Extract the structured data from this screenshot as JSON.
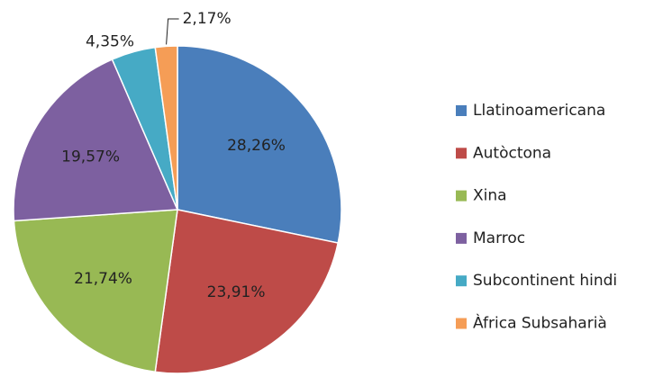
{
  "chart_data": {
    "type": "pie",
    "categories": [
      "Llatinoamericana",
      "Autòctona",
      "Xina",
      "Marroc",
      "Subcontinent hindi",
      "Àfrica Subsaharià"
    ],
    "values": [
      28.26,
      23.91,
      21.74,
      19.57,
      4.35,
      2.17
    ],
    "value_labels": [
      "28,26%",
      "23,91%",
      "21,74%",
      "19,57%",
      "4,35%",
      "2,17%"
    ],
    "colors": [
      "#4a7ebb",
      "#be4b48",
      "#98b954",
      "#7d60a0",
      "#46aac5",
      "#f59d56"
    ],
    "legend": "right"
  }
}
